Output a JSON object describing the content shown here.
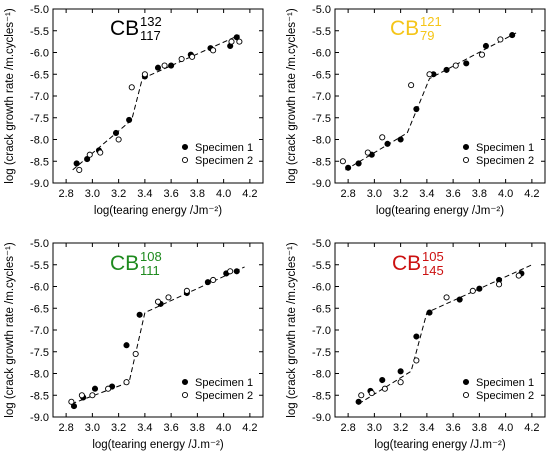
{
  "chart_data": [
    {
      "type": "scatter",
      "title": "CB",
      "title_sup": "132",
      "title_sub": "117",
      "title_color": "#000000",
      "xlabel": "log(tearing energy /Jm⁻²)",
      "ylabel": "log (crack growth rate /m.cycles⁻¹)",
      "xlim": [
        2.7,
        4.3
      ],
      "ylim": [
        -9.0,
        -5.0
      ],
      "xticks": [
        "2.8",
        "3.0",
        "3.2",
        "3.4",
        "3.6",
        "3.8",
        "4.0",
        "4.2"
      ],
      "yticks": [
        "-9.0",
        "-8.5",
        "-8.0",
        "-7.5",
        "-7.0",
        "-6.5",
        "-6.0",
        "-5.5",
        "-5.0"
      ],
      "legend_position": "bottom-right",
      "series": [
        {
          "name": "Specimen 1",
          "marker": "filled",
          "points": [
            [
              2.88,
              -8.55
            ],
            [
              2.96,
              -8.45
            ],
            [
              3.05,
              -8.25
            ],
            [
              3.18,
              -7.85
            ],
            [
              3.28,
              -7.55
            ],
            [
              3.4,
              -6.55
            ],
            [
              3.5,
              -6.35
            ],
            [
              3.6,
              -6.3
            ],
            [
              3.75,
              -6.05
            ],
            [
              3.9,
              -5.9
            ],
            [
              4.05,
              -5.85
            ],
            [
              4.1,
              -5.65
            ]
          ]
        },
        {
          "name": "Specimen 2",
          "marker": "open",
          "points": [
            [
              2.9,
              -8.7
            ],
            [
              2.98,
              -8.35
            ],
            [
              3.06,
              -8.3
            ],
            [
              3.2,
              -8.0
            ],
            [
              3.3,
              -6.8
            ],
            [
              3.4,
              -6.5
            ],
            [
              3.55,
              -6.3
            ],
            [
              3.68,
              -6.15
            ],
            [
              3.76,
              -6.1
            ],
            [
              3.92,
              -5.95
            ],
            [
              4.06,
              -5.75
            ],
            [
              4.12,
              -5.75
            ]
          ]
        }
      ],
      "fit_line": [
        [
          2.85,
          -8.7
        ],
        [
          3.3,
          -7.55
        ],
        [
          3.38,
          -6.6
        ],
        [
          4.12,
          -5.6
        ]
      ]
    },
    {
      "type": "scatter",
      "title": "CB",
      "title_sup": "121",
      "title_sub": "79",
      "title_color": "#f5c518",
      "xlabel": "log(tearing energy /Jm⁻²)",
      "ylabel": "log (crack growth rate /m.cycles⁻¹)",
      "xlim": [
        2.7,
        4.3
      ],
      "ylim": [
        -9.0,
        -5.0
      ],
      "xticks": [
        "2.8",
        "3.0",
        "3.2",
        "3.4",
        "3.6",
        "3.8",
        "4.0",
        "4.2"
      ],
      "yticks": [
        "-9.0",
        "-8.5",
        "-8.0",
        "-7.5",
        "-7.0",
        "-6.5",
        "-6.0",
        "-5.5",
        "-5.0"
      ],
      "legend_position": "bottom-right",
      "series": [
        {
          "name": "Specimen 1",
          "marker": "filled",
          "points": [
            [
              2.8,
              -8.65
            ],
            [
              2.88,
              -8.55
            ],
            [
              2.98,
              -8.35
            ],
            [
              3.1,
              -8.1
            ],
            [
              3.2,
              -8.0
            ],
            [
              3.32,
              -7.3
            ],
            [
              3.45,
              -6.5
            ],
            [
              3.55,
              -6.4
            ],
            [
              3.7,
              -6.25
            ],
            [
              3.85,
              -5.85
            ],
            [
              4.05,
              -5.6
            ]
          ]
        },
        {
          "name": "Specimen 2",
          "marker": "open",
          "points": [
            [
              2.76,
              -8.5
            ],
            [
              2.95,
              -8.3
            ],
            [
              3.06,
              -7.95
            ],
            [
              3.28,
              -6.75
            ],
            [
              3.42,
              -6.5
            ],
            [
              3.62,
              -6.3
            ],
            [
              3.82,
              -6.05
            ],
            [
              3.96,
              -5.7
            ]
          ]
        }
      ],
      "fit_line": [
        [
          2.78,
          -8.7
        ],
        [
          3.25,
          -7.85
        ],
        [
          3.42,
          -6.6
        ],
        [
          4.08,
          -5.55
        ]
      ]
    },
    {
      "type": "scatter",
      "title": "CB",
      "title_sup": "108",
      "title_sub": "111",
      "title_color": "#1e8a1e",
      "xlabel": "log(tearing energy /J.m⁻²)",
      "ylabel": "log (crack growth rate /m.cycles⁻¹)",
      "xlim": [
        2.7,
        4.3
      ],
      "ylim": [
        -9.0,
        -5.0
      ],
      "xticks": [
        "2.8",
        "3.0",
        "3.2",
        "3.4",
        "3.6",
        "3.8",
        "4.0",
        "4.2"
      ],
      "yticks": [
        "-9.0",
        "-8.5",
        "-8.0",
        "-7.5",
        "-7.0",
        "-6.5",
        "-6.0",
        "-5.5",
        "-5.0"
      ],
      "legend_position": "bottom-right",
      "series": [
        {
          "name": "Specimen 1",
          "marker": "filled",
          "points": [
            [
              2.86,
              -8.75
            ],
            [
              2.93,
              -8.55
            ],
            [
              3.02,
              -8.35
            ],
            [
              3.15,
              -8.3
            ],
            [
              3.26,
              -7.35
            ],
            [
              3.36,
              -6.65
            ],
            [
              3.52,
              -6.4
            ],
            [
              3.72,
              -6.15
            ],
            [
              3.88,
              -5.9
            ],
            [
              4.02,
              -5.7
            ],
            [
              4.1,
              -5.65
            ]
          ]
        },
        {
          "name": "Specimen 2",
          "marker": "open",
          "points": [
            [
              2.84,
              -8.65
            ],
            [
              2.92,
              -8.5
            ],
            [
              3.0,
              -8.5
            ],
            [
              3.12,
              -8.35
            ],
            [
              3.26,
              -8.2
            ],
            [
              3.33,
              -7.55
            ],
            [
              3.5,
              -6.35
            ],
            [
              3.58,
              -6.25
            ],
            [
              3.72,
              -6.1
            ],
            [
              3.92,
              -5.85
            ],
            [
              4.05,
              -5.65
            ]
          ]
        }
      ],
      "fit_line": [
        [
          2.84,
          -8.7
        ],
        [
          3.28,
          -8.2
        ],
        [
          3.4,
          -6.6
        ],
        [
          4.16,
          -5.55
        ]
      ]
    },
    {
      "type": "scatter",
      "title": "CB",
      "title_sup": "105",
      "title_sub": "145",
      "title_color": "#cc1111",
      "xlabel": "log(tearing energy /J.m⁻²)",
      "ylabel": "log (crack growth rate /m.cycles⁻¹)",
      "xlim": [
        2.7,
        4.3
      ],
      "ylim": [
        -9.0,
        -5.0
      ],
      "xticks": [
        "2.8",
        "3.0",
        "3.2",
        "3.4",
        "3.6",
        "3.8",
        "4.0",
        "4.2"
      ],
      "yticks": [
        "-9.0",
        "-8.5",
        "-8.0",
        "-7.5",
        "-7.0",
        "-6.5",
        "-6.0",
        "-5.5",
        "-5.0"
      ],
      "legend_position": "bottom-right",
      "series": [
        {
          "name": "Specimen 1",
          "marker": "filled",
          "points": [
            [
              2.88,
              -8.65
            ],
            [
              2.97,
              -8.4
            ],
            [
              3.06,
              -8.15
            ],
            [
              3.2,
              -7.95
            ],
            [
              3.32,
              -7.15
            ],
            [
              3.42,
              -6.6
            ],
            [
              3.65,
              -6.3
            ],
            [
              3.8,
              -6.05
            ],
            [
              3.95,
              -5.85
            ],
            [
              4.12,
              -5.7
            ]
          ]
        },
        {
          "name": "Specimen 2",
          "marker": "open",
          "points": [
            [
              2.9,
              -8.5
            ],
            [
              2.98,
              -8.45
            ],
            [
              3.08,
              -8.35
            ],
            [
              3.2,
              -8.2
            ],
            [
              3.32,
              -7.7
            ],
            [
              3.55,
              -6.25
            ],
            [
              3.75,
              -6.1
            ],
            [
              3.95,
              -5.95
            ],
            [
              4.1,
              -5.75
            ]
          ]
        }
      ],
      "fit_line": [
        [
          2.88,
          -8.7
        ],
        [
          3.28,
          -7.95
        ],
        [
          3.4,
          -6.6
        ],
        [
          4.2,
          -5.5
        ]
      ]
    }
  ]
}
